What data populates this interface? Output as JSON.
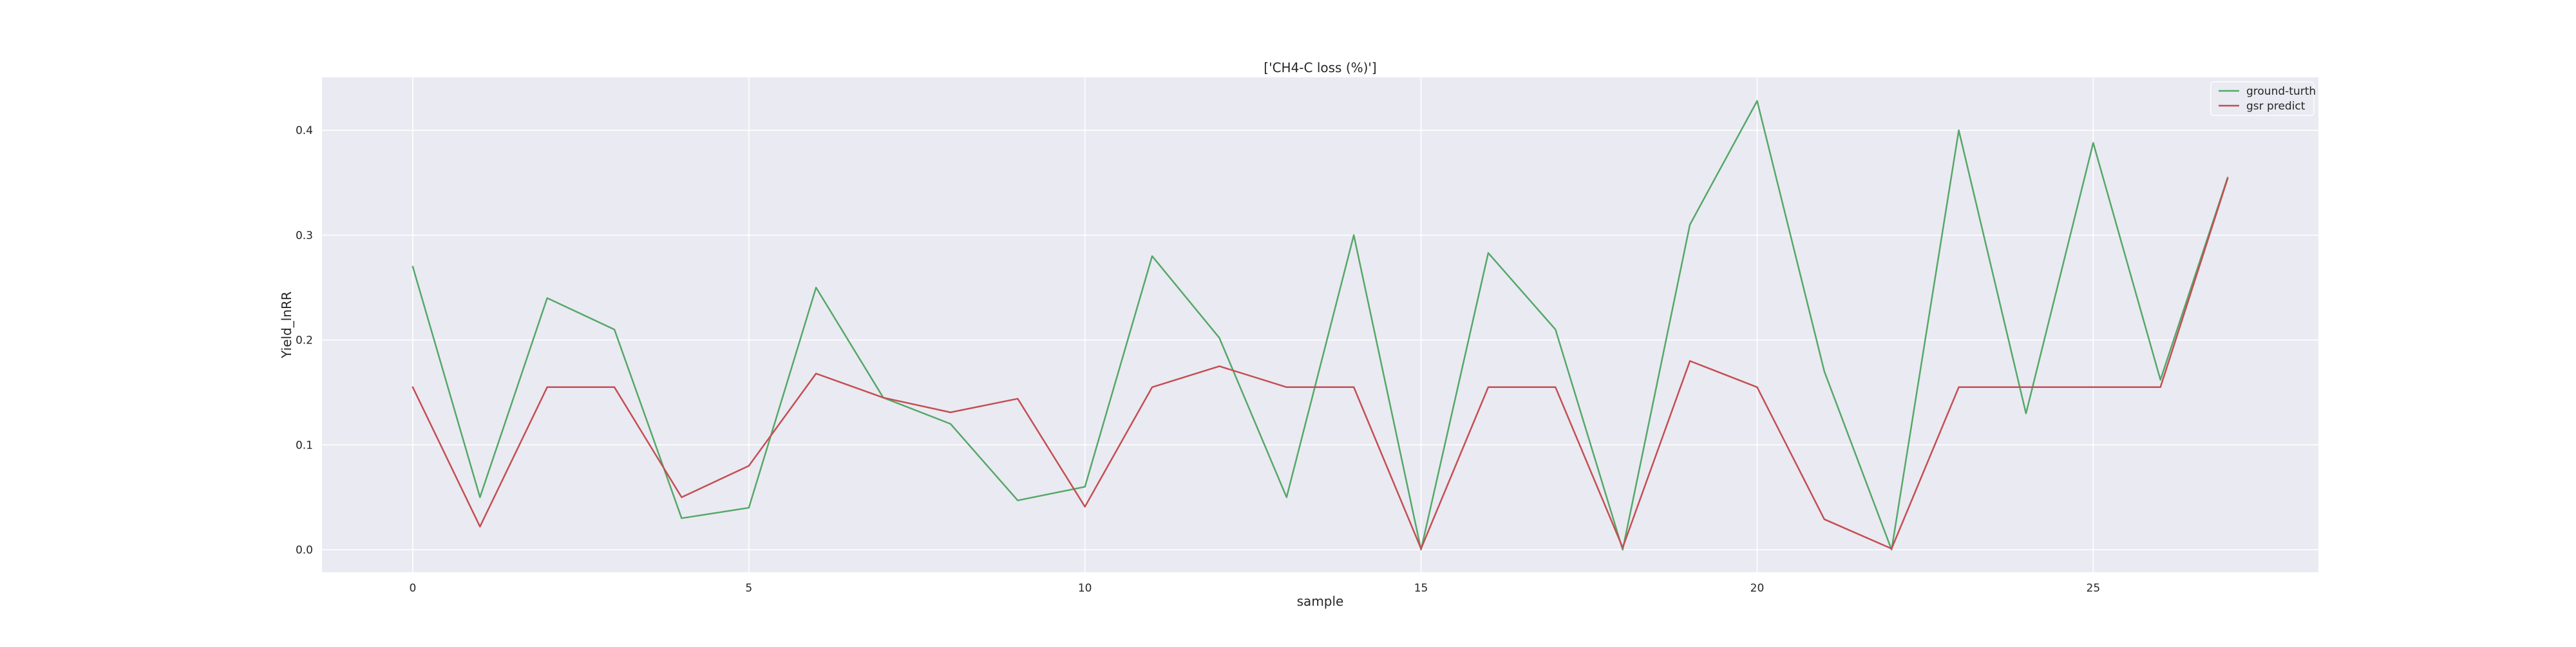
{
  "chart_data": {
    "type": "line",
    "title": "['CH4-C loss (%)']",
    "xlabel": "sample",
    "ylabel": "Yield_lnRR",
    "xlim": [
      -1.35,
      28.35
    ],
    "ylim": [
      -0.0215,
      0.4505
    ],
    "x_ticks": [
      0,
      5,
      10,
      15,
      20,
      25
    ],
    "y_ticks": [
      0.0,
      0.1,
      0.2,
      0.3,
      0.4
    ],
    "y_tick_labels": [
      "0.0",
      "0.1",
      "0.2",
      "0.3",
      "0.4"
    ],
    "grid": true,
    "legend_position": "top-right",
    "x": [
      0,
      1,
      2,
      3,
      4,
      5,
      6,
      7,
      8,
      9,
      10,
      11,
      12,
      13,
      14,
      15,
      16,
      17,
      18,
      19,
      20,
      21,
      22,
      23,
      24,
      25,
      26,
      27
    ],
    "series": [
      {
        "name": "ground-turth",
        "color": "#55a868",
        "values": [
          0.27,
          0.05,
          0.24,
          0.21,
          0.03,
          0.04,
          0.25,
          0.145,
          0.12,
          0.047,
          0.06,
          0.28,
          0.202,
          0.05,
          0.3,
          0.0,
          0.283,
          0.21,
          0.0,
          0.31,
          0.428,
          0.17,
          0.0,
          0.4,
          0.13,
          0.388,
          0.162,
          0.355
        ]
      },
      {
        "name": "gsr predict",
        "color": "#c44e52",
        "values": [
          0.155,
          0.022,
          0.155,
          0.155,
          0.05,
          0.08,
          0.168,
          0.145,
          0.131,
          0.144,
          0.041,
          0.155,
          0.175,
          0.155,
          0.155,
          0.001,
          0.155,
          0.155,
          0.002,
          0.18,
          0.155,
          0.029,
          0.001,
          0.155,
          0.155,
          0.155,
          0.155,
          0.354
        ]
      }
    ]
  }
}
